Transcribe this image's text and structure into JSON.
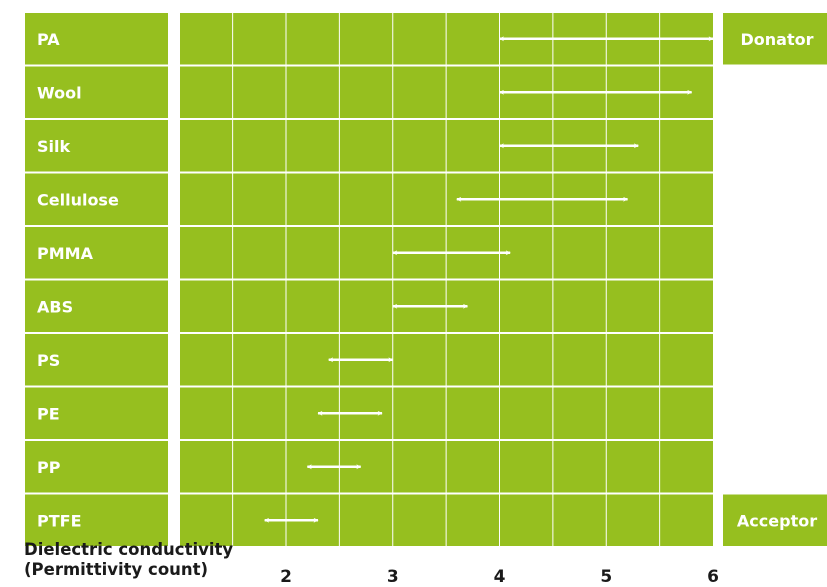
{
  "colors": {
    "panel_green": "#96bf1f",
    "grid_line": "#ffffff",
    "arrow": "#ffffff",
    "text_dark": "#1a1a1a"
  },
  "chart_data": {
    "type": "range",
    "xlabel_lines": [
      "Dielectric conductivity",
      "(Permittivity count)"
    ],
    "x_ticks": [
      2,
      3,
      4,
      5,
      6
    ],
    "x_range": [
      0.6,
      6.2
    ],
    "grid_step": 0.5,
    "side_labels": {
      "top": "Donator",
      "bottom": "Acceptor"
    },
    "rows": [
      {
        "name": "PA",
        "min": 4.0,
        "max": 6.0
      },
      {
        "name": "Wool",
        "min": 4.0,
        "max": 5.8
      },
      {
        "name": "Silk",
        "min": 4.0,
        "max": 5.3
      },
      {
        "name": "Cellulose",
        "min": 3.6,
        "max": 5.2
      },
      {
        "name": "PMMA",
        "min": 3.0,
        "max": 4.1
      },
      {
        "name": "ABS",
        "min": 3.0,
        "max": 3.7
      },
      {
        "name": "PS",
        "min": 2.4,
        "max": 3.0
      },
      {
        "name": "PE",
        "min": 2.3,
        "max": 2.9
      },
      {
        "name": "PP",
        "min": 2.2,
        "max": 2.7
      },
      {
        "name": "PTFE",
        "min": 1.8,
        "max": 2.3
      }
    ]
  }
}
